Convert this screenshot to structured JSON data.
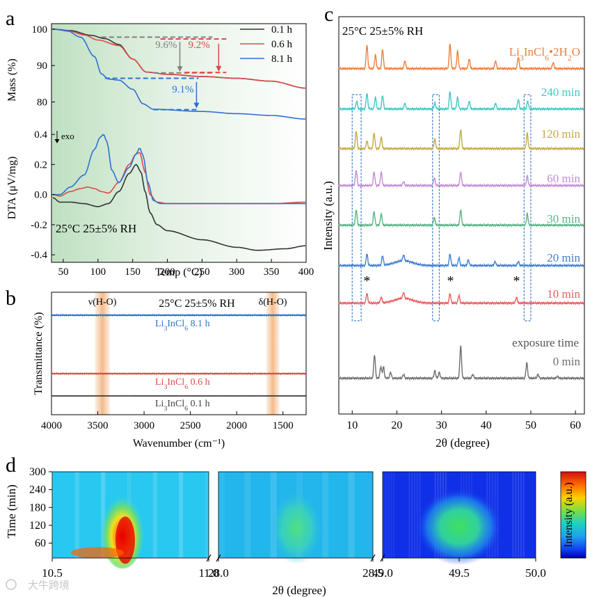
{
  "figure": {
    "watermark": "大牛跨境"
  },
  "chart_data": [
    {
      "panel": "a",
      "type": "line",
      "subplots": [
        {
          "ylabel": "Mass (%)",
          "yticks": [
            100,
            90,
            80
          ],
          "ylim": [
            74,
            101.5
          ],
          "series": [
            {
              "name": "0.1 h",
              "color": "#333333",
              "x": [
                35,
                60,
                90,
                110,
                130,
                150,
                170,
                200,
                250,
                300,
                350,
                400
              ],
              "y": [
                100,
                99.6,
                98.3,
                97.4,
                95.8,
                91.8,
                88.2,
                87.6,
                87.0,
                86.5,
                85.7,
                83.8
              ]
            },
            {
              "name": "0.6 h",
              "color": "#e04848",
              "x": [
                35,
                60,
                80,
                100,
                130,
                150,
                170,
                200,
                250,
                300,
                350,
                400
              ],
              "y": [
                100,
                99.4,
                98.4,
                97.0,
                95.5,
                91.8,
                88.2,
                87.6,
                87.0,
                86.5,
                85.7,
                83.8
              ]
            },
            {
              "name": "8.1 h",
              "color": "#2f6fd1",
              "x": [
                35,
                55,
                75,
                95,
                105,
                115,
                130,
                150,
                165,
                180,
                250,
                300,
                350,
                400
              ],
              "y": [
                100,
                99.6,
                97.8,
                92.5,
                87.7,
                86.3,
                86.0,
                83.5,
                79.5,
                78.0,
                77.4,
                76.8,
                76.3,
                75.3
              ]
            }
          ],
          "annotations": [
            {
              "text": "9.6%",
              "color": "#808080"
            },
            {
              "text": "9.2%",
              "color": "#e04848"
            },
            {
              "text": "9.1%",
              "color": "#2f6fd1"
            }
          ]
        },
        {
          "ylabel": "DTA (μV/mg)",
          "yticks": [
            0.4,
            0.2,
            0.0,
            -0.2,
            -0.4
          ],
          "ylim": [
            -0.45,
            0.47
          ],
          "exo_label": "exo",
          "condition": "25°C 25±5% RH",
          "series": [
            {
              "name": "0.1 h",
              "color": "#333333",
              "x": [
                35,
                45,
                60,
                80,
                100,
                115,
                130,
                145,
                155,
                162,
                168,
                175,
                185,
                200,
                250,
                300,
                330,
                370,
                400
              ],
              "y": [
                -0.02,
                -0.05,
                -0.05,
                -0.06,
                -0.08,
                -0.06,
                0.02,
                0.14,
                0.2,
                0.15,
                0.02,
                -0.12,
                -0.2,
                -0.24,
                -0.3,
                -0.35,
                -0.37,
                -0.36,
                -0.34
              ]
            },
            {
              "name": "0.6 h",
              "color": "#e04848",
              "x": [
                35,
                45,
                60,
                75,
                85,
                95,
                105,
                115,
                130,
                145,
                155,
                160,
                168,
                175,
                185,
                200,
                250,
                300,
                350,
                400
              ],
              "y": [
                0.0,
                -0.01,
                0.02,
                0.04,
                0.05,
                0.04,
                0.02,
                0.01,
                0.08,
                0.2,
                0.27,
                0.28,
                0.15,
                0.0,
                -0.05,
                -0.06,
                -0.06,
                -0.06,
                -0.06,
                -0.05
              ]
            },
            {
              "name": "8.1 h",
              "color": "#2f6fd1",
              "x": [
                35,
                45,
                60,
                80,
                95,
                103,
                108,
                113,
                120,
                130,
                145,
                155,
                160,
                165,
                172,
                180,
                190,
                200,
                250,
                300,
                350,
                400
              ],
              "y": [
                0.0,
                0.0,
                0.05,
                0.13,
                0.3,
                0.38,
                0.4,
                0.35,
                0.16,
                0.08,
                0.18,
                0.27,
                0.31,
                0.26,
                0.08,
                -0.04,
                -0.06,
                -0.06,
                -0.06,
                -0.06,
                -0.06,
                -0.06
              ]
            }
          ]
        }
      ],
      "xlabel": "Temp (°C)",
      "xlim": [
        33,
        400
      ],
      "xticks": [
        50,
        100,
        150,
        200,
        250,
        300,
        350,
        400
      ]
    },
    {
      "panel": "b",
      "type": "line",
      "title": "25°C 25±5% RH",
      "xlabel": "Wavenumber (cm⁻¹)",
      "ylabel": "Transmittance (%)",
      "xlim": [
        4000,
        1250
      ],
      "xticks": [
        4000,
        3500,
        3000,
        2500,
        2000,
        1500
      ],
      "bands": [
        {
          "label": "ν(H-O)",
          "range": [
            3530,
            3370
          ]
        },
        {
          "label": "δ(H-O)",
          "range": [
            1680,
            1540
          ]
        }
      ],
      "series": [
        {
          "name": "Li3InCl6 8.1 h",
          "label_base": "Li",
          "label_sub1": "3",
          "label_mid": "InCl",
          "label_sub2": "6",
          "label_suffix": "8.1 h",
          "color": "#2f6fd1",
          "x": [
            4000,
            3800,
            3700,
            3650,
            3600,
            3560,
            3520,
            3490,
            3460,
            3440,
            3420,
            3400,
            3370,
            3330,
            3250,
            3100,
            3000,
            2500,
            2000,
            1750,
            1680,
            1650,
            1630,
            1620,
            1610,
            1600,
            1580,
            1560,
            1500,
            1250
          ],
          "y": [
            0.0,
            -0.02,
            -0.02,
            -0.1,
            -0.35,
            -0.55,
            -0.95,
            -1.6,
            -2.5,
            -3.0,
            -2.9,
            -2.0,
            -1.0,
            -0.5,
            -0.25,
            -0.06,
            -0.02,
            0.0,
            0.0,
            0.0,
            -0.1,
            -1.0,
            -1.6,
            -1.0,
            -0.8,
            -1.8,
            -0.7,
            -0.15,
            0.0,
            0.0
          ]
        },
        {
          "name": "Li3InCl6 0.6 h",
          "label_base": "Li",
          "label_sub1": "3",
          "label_mid": "InCl",
          "label_sub2": "6",
          "label_suffix": "0.6 h",
          "color": "#e04848",
          "x": [
            4000,
            3800,
            3700,
            3650,
            3600,
            3550,
            3500,
            3470,
            3450,
            3420,
            3380,
            3300,
            3200,
            3000,
            2000,
            1700,
            1660,
            1640,
            1620,
            1600,
            1580,
            1500,
            1250
          ],
          "y": [
            0.0,
            0.0,
            0.0,
            -0.05,
            -0.3,
            -0.45,
            -0.7,
            -0.9,
            -0.95,
            -0.75,
            -0.45,
            -0.25,
            -0.15,
            -0.05,
            0.0,
            0.0,
            -0.3,
            -0.7,
            -0.95,
            -0.3,
            -0.05,
            0.0,
            0.0
          ]
        },
        {
          "name": "Li3InCl6 0.1 h",
          "label_base": "Li",
          "label_sub1": "3",
          "label_mid": "InCl",
          "label_sub2": "6",
          "label_suffix": "0.1 h",
          "color": "#444444",
          "x": [
            4000,
            3600,
            3500,
            3400,
            3000,
            1700,
            1640,
            1600,
            1250
          ],
          "y": [
            0.0,
            0.0,
            -0.05,
            -0.05,
            0.0,
            0.0,
            -0.05,
            0.0,
            0.0
          ]
        }
      ]
    },
    {
      "panel": "c",
      "type": "line",
      "title": "25°C 25±5% RH",
      "xlabel": "2θ (degree)",
      "ylabel": "Intensity (a.u.)",
      "xlim": [
        7,
        62
      ],
      "xticks": [
        10,
        20,
        30,
        40,
        50,
        60
      ],
      "highlight_ranges": [
        [
          10,
          12
        ],
        [
          28,
          29.5
        ],
        [
          48.5,
          50
        ]
      ],
      "markers": [
        {
          "label": "*",
          "x": 13.3
        },
        {
          "label": "*",
          "x": 32
        },
        {
          "label": "*",
          "x": 46.8
        }
      ],
      "legend_title": "exposure time",
      "series": [
        {
          "name": "Li3InCl6•2H2O",
          "label_parts": [
            "Li",
            "3",
            "InCl",
            "6",
            "•2H",
            "2",
            "O"
          ],
          "color": "#ef7f39",
          "peaks": [
            [
              13.3,
              1.2
            ],
            [
              15.2,
              0.7
            ],
            [
              16.8,
              1.0
            ],
            [
              21.8,
              0.4
            ],
            [
              31.9,
              1.3
            ],
            [
              33.6,
              0.9
            ],
            [
              36.2,
              0.5
            ],
            [
              42.1,
              0.4
            ],
            [
              47.2,
              0.6
            ],
            [
              55,
              0.3
            ]
          ]
        },
        {
          "name": "240 min",
          "color": "#3fc9c6",
          "peaks": [
            [
              11,
              0.4
            ],
            [
              13.3,
              0.8
            ],
            [
              15.2,
              0.6
            ],
            [
              16.8,
              0.7
            ],
            [
              21.8,
              0.3
            ],
            [
              28.5,
              0.3
            ],
            [
              31.9,
              0.9
            ],
            [
              33.6,
              0.6
            ],
            [
              36.2,
              0.4
            ],
            [
              42.1,
              0.3
            ],
            [
              47.2,
              0.5
            ],
            [
              49.3,
              0.4
            ]
          ]
        },
        {
          "name": "120 min",
          "color": "#c8a940",
          "peaks": [
            [
              10.9,
              0.9
            ],
            [
              13.3,
              0.4
            ],
            [
              14.9,
              0.8
            ],
            [
              16.5,
              0.6
            ],
            [
              28.5,
              0.5
            ],
            [
              34.3,
              1.0
            ],
            [
              49.2,
              0.8
            ]
          ]
        },
        {
          "name": "60 min",
          "color": "#c38bd4",
          "peaks": [
            [
              10.9,
              0.8
            ],
            [
              14.9,
              0.7
            ],
            [
              16.5,
              0.7
            ],
            [
              21.5,
              0.2
            ],
            [
              28.4,
              0.4
            ],
            [
              34.3,
              0.7
            ],
            [
              49.2,
              0.5
            ]
          ]
        },
        {
          "name": "30 min",
          "color": "#56b483",
          "peaks": [
            [
              10.9,
              0.8
            ],
            [
              14.9,
              0.7
            ],
            [
              16.5,
              0.6
            ],
            [
              28.4,
              0.4
            ],
            [
              34.3,
              0.8
            ],
            [
              49.2,
              0.6
            ]
          ]
        },
        {
          "name": "20 min",
          "color": "#3f7fd1",
          "peaks": [
            [
              13.3,
              0.6
            ],
            [
              16.8,
              0.5
            ],
            [
              21.5,
              0.3
            ],
            [
              31.9,
              0.6
            ],
            [
              33.9,
              0.4
            ],
            [
              36,
              0.3
            ],
            [
              42,
              0.2
            ],
            [
              47.2,
              0.2
            ]
          ]
        },
        {
          "name": "10 min",
          "color": "#e85e5e",
          "peaks": [
            [
              13.3,
              0.5
            ],
            [
              16.5,
              0.3
            ],
            [
              21.5,
              0.3
            ],
            [
              31.9,
              0.5
            ],
            [
              33.9,
              0.4
            ],
            [
              46.8,
              0.3
            ]
          ]
        },
        {
          "name": "0 min",
          "color": "#6e6e6e",
          "peaks": [
            [
              15,
              1.2
            ],
            [
              16.4,
              0.6
            ],
            [
              17,
              0.6
            ],
            [
              18.6,
              0.3
            ],
            [
              21.5,
              0.2
            ],
            [
              28.5,
              0.4
            ],
            [
              29.5,
              0.3
            ],
            [
              34.3,
              1.7
            ],
            [
              37,
              0.2
            ],
            [
              49.1,
              0.8
            ],
            [
              51.6,
              0.2
            ],
            [
              56,
              0.1
            ]
          ]
        }
      ]
    },
    {
      "panel": "d",
      "type": "heatmap",
      "xlabel": "2θ (degree)",
      "ylabel": "Time (min)",
      "colorbar_label": "Intensity (a.u.)",
      "ylim": [
        10,
        300
      ],
      "yticks": [
        300,
        240,
        180,
        120,
        60
      ],
      "segments": [
        {
          "range": [
            10.5,
            11.0
          ],
          "xticks": [
            10.5,
            11.0
          ],
          "background": "#28c8f0"
        },
        {
          "range": [
            28.0,
            28.5
          ],
          "xticks": [
            28.0,
            28.5
          ],
          "background": "#22b6ec"
        },
        {
          "range": [
            49.0,
            50.0
          ],
          "xticks": [
            49.0,
            49.5,
            50.0
          ],
          "background": "#1030e8"
        }
      ]
    }
  ]
}
